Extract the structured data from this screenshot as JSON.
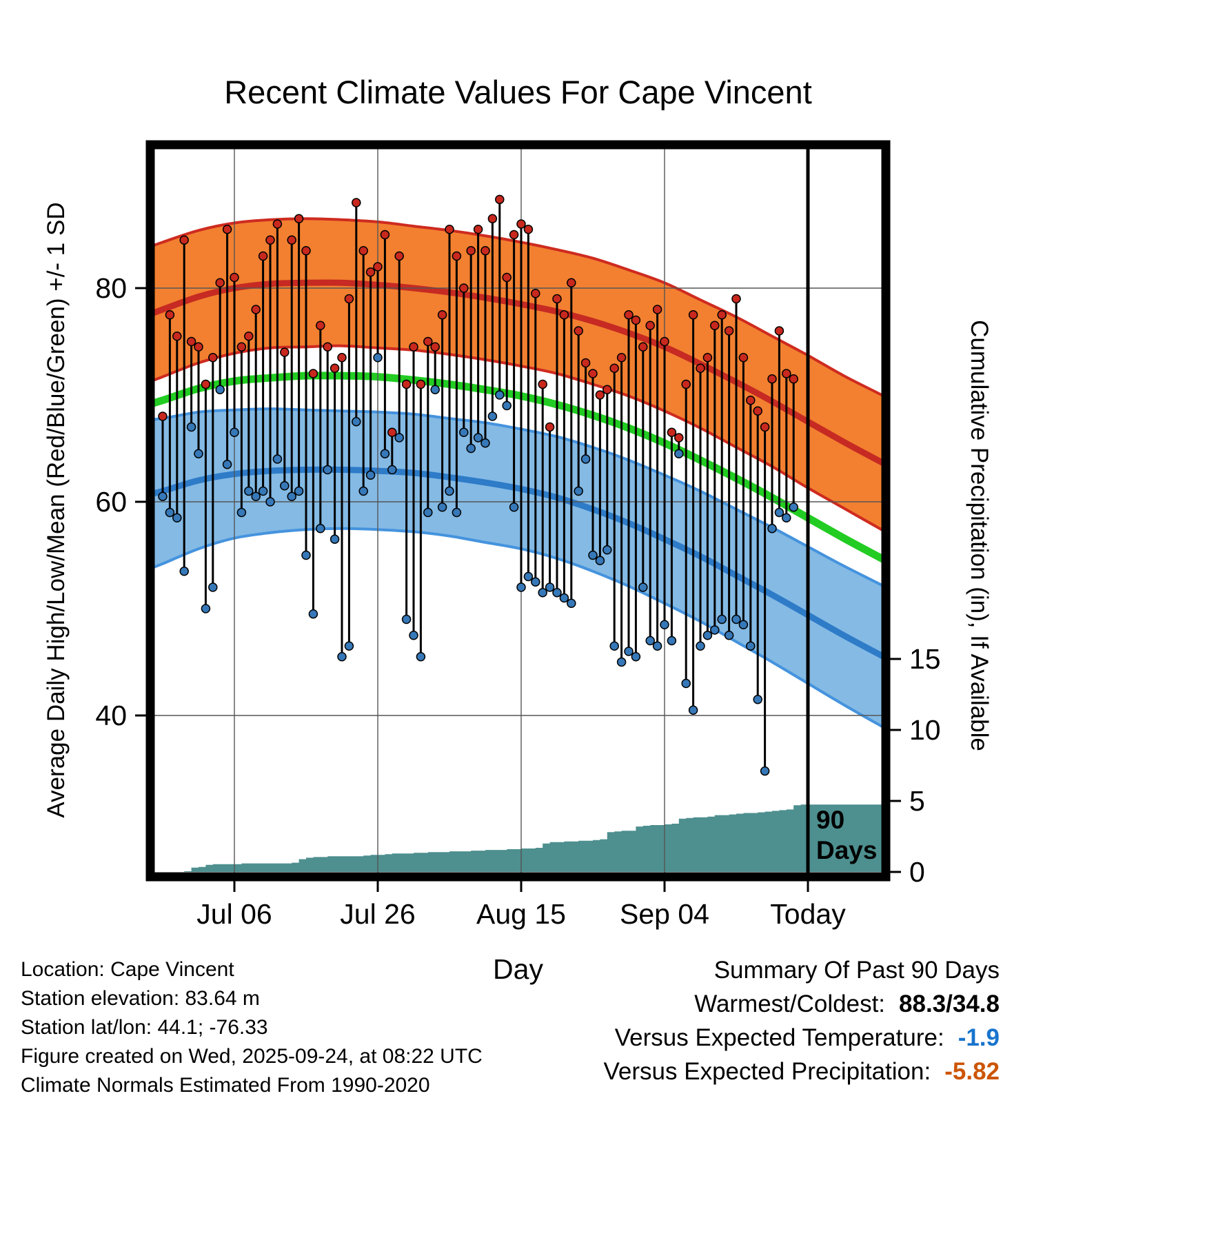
{
  "title": "Recent Climate Values For Cape Vincent",
  "axis_titles": {
    "left": "Average Daily High/Low/Mean (Red/Blue/Green) +/- 1 SD",
    "right": "Cumulative Precipitation (in), If Available",
    "x": "Day"
  },
  "annotations": {
    "period_line1": "90",
    "period_line2": "Days"
  },
  "chart_data": {
    "type": "line",
    "title": "Recent Climate Values For Cape Vincent",
    "x_unit": "day index (0 = about Jun 26, 90 = Today = Sep 24)",
    "today_day": 90,
    "x_ticks": [
      {
        "day": 10,
        "label": "Jul 06"
      },
      {
        "day": 30,
        "label": "Jul 26"
      },
      {
        "day": 50,
        "label": "Aug 15"
      },
      {
        "day": 70,
        "label": "Sep 04"
      },
      {
        "day": 90,
        "label": "Today"
      }
    ],
    "temp_axis": {
      "label": "Average Daily High/Low/Mean (Red/Blue/Green) +/- 1 SD",
      "ticks": [
        40,
        60,
        80
      ],
      "range": [
        24.9,
        93.4
      ]
    },
    "precip_axis": {
      "label": "Cumulative Precipitation (in), If Available",
      "ticks": [
        0,
        5,
        10,
        15
      ],
      "range": [
        0,
        51.2
      ]
    },
    "grid": true,
    "normals": {
      "days": [
        -2,
        0,
        5,
        10,
        15,
        20,
        25,
        30,
        35,
        40,
        45,
        50,
        55,
        60,
        65,
        70,
        75,
        80,
        85,
        90,
        95,
        100,
        102
      ],
      "high_mean": [
        77.5,
        78.0,
        79.2,
        80.0,
        80.4,
        80.5,
        80.5,
        80.3,
        80.0,
        79.6,
        79.1,
        78.5,
        77.8,
        76.9,
        75.8,
        74.5,
        72.9,
        71.2,
        69.4,
        67.5,
        65.6,
        63.8,
        63.1
      ],
      "high_sd": [
        6.3,
        6.3,
        6.2,
        6.1,
        6.0,
        6.0,
        5.9,
        5.9,
        5.8,
        5.8,
        5.8,
        5.8,
        5.8,
        5.9,
        5.9,
        6.0,
        6.0,
        6.1,
        6.1,
        6.2,
        6.2,
        6.3,
        6.3
      ],
      "mean": [
        69.1,
        69.5,
        70.6,
        71.3,
        71.6,
        71.8,
        71.8,
        71.7,
        71.4,
        71.0,
        70.5,
        69.9,
        69.1,
        68.1,
        66.9,
        65.5,
        63.9,
        62.2,
        60.4,
        58.5,
        56.6,
        54.8,
        54.1
      ],
      "low_mean": [
        60.7,
        61.0,
        62.0,
        62.6,
        62.9,
        63.0,
        63.0,
        62.9,
        62.7,
        62.3,
        61.8,
        61.2,
        60.4,
        59.3,
        58.0,
        56.5,
        54.9,
        53.1,
        51.3,
        49.4,
        47.5,
        45.7,
        45.0
      ],
      "low_sd": [
        7.0,
        6.8,
        6.4,
        6.0,
        5.8,
        5.6,
        5.5,
        5.5,
        5.5,
        5.5,
        5.6,
        5.6,
        5.7,
        5.8,
        5.9,
        6.0,
        6.1,
        6.2,
        6.3,
        6.4,
        6.5,
        6.6,
        6.6
      ]
    },
    "daily": {
      "start_day": 0,
      "high": [
        68.0,
        77.5,
        75.5,
        84.5,
        75.0,
        74.5,
        71.0,
        73.5,
        80.5,
        85.5,
        81.0,
        74.5,
        75.5,
        78.0,
        83.0,
        84.5,
        86.0,
        74.0,
        84.5,
        86.5,
        83.5,
        72.0,
        76.5,
        74.5,
        72.5,
        73.5,
        79.0,
        88.0,
        83.5,
        81.5,
        82.0,
        85.0,
        66.5,
        83.0,
        71.0,
        74.5,
        71.0,
        75.0,
        74.5,
        77.5,
        85.5,
        83.0,
        80.0,
        83.5,
        85.5,
        83.5,
        86.5,
        88.3,
        81.0,
        85.0,
        86.0,
        85.5,
        79.5,
        71.0,
        67.0,
        79.0,
        77.5,
        80.5,
        76.0,
        73.0,
        72.0,
        70.0,
        70.5,
        72.5,
        73.5,
        77.5,
        77.0,
        74.5,
        76.5,
        78.0,
        75.0,
        66.5,
        66.0,
        71.0,
        77.5,
        72.5,
        73.5,
        76.5,
        77.5,
        76.0,
        79.0,
        73.5,
        69.5,
        68.5,
        67.0,
        71.5,
        76.0,
        72.0,
        71.5
      ],
      "low": [
        60.5,
        59.0,
        58.5,
        53.5,
        67.0,
        64.5,
        50.0,
        52.0,
        70.5,
        63.5,
        66.5,
        59.0,
        61.0,
        60.5,
        61.0,
        60.0,
        64.0,
        61.5,
        60.5,
        61.0,
        55.0,
        49.5,
        57.5,
        63.0,
        56.5,
        45.5,
        46.5,
        67.5,
        61.0,
        62.5,
        73.5,
        64.5,
        63.0,
        66.0,
        49.0,
        47.5,
        45.5,
        59.0,
        70.5,
        59.5,
        61.0,
        59.0,
        66.5,
        65.0,
        66.0,
        65.5,
        68.0,
        70.0,
        69.0,
        59.5,
        52.0,
        53.0,
        52.5,
        51.5,
        52.0,
        51.5,
        51.0,
        50.5,
        61.0,
        64.0,
        55.0,
        54.5,
        55.5,
        46.5,
        45.0,
        46.0,
        45.5,
        52.0,
        47.0,
        46.5,
        48.5,
        47.0,
        64.5,
        43.0,
        40.5,
        46.5,
        47.5,
        48.0,
        49.0,
        47.5,
        49.0,
        48.5,
        46.5,
        41.5,
        34.8,
        57.5,
        59.0,
        58.5,
        59.5
      ]
    },
    "precip_cumulative": {
      "start_day": 0,
      "values": [
        0,
        0,
        0,
        0.05,
        0.3,
        0.35,
        0.5,
        0.55,
        0.55,
        0.55,
        0.55,
        0.6,
        0.6,
        0.6,
        0.6,
        0.6,
        0.6,
        0.6,
        0.65,
        0.9,
        1.0,
        1.05,
        1.05,
        1.1,
        1.1,
        1.1,
        1.1,
        1.1,
        1.15,
        1.2,
        1.2,
        1.25,
        1.3,
        1.3,
        1.3,
        1.35,
        1.35,
        1.4,
        1.4,
        1.4,
        1.45,
        1.45,
        1.45,
        1.5,
        1.5,
        1.55,
        1.55,
        1.55,
        1.6,
        1.6,
        1.65,
        1.65,
        1.7,
        2.0,
        2.1,
        2.1,
        2.15,
        2.15,
        2.2,
        2.2,
        2.25,
        2.3,
        2.8,
        2.85,
        2.9,
        2.9,
        3.2,
        3.25,
        3.3,
        3.3,
        3.35,
        3.4,
        3.75,
        3.8,
        3.85,
        3.85,
        3.9,
        4.0,
        4.0,
        4.05,
        4.1,
        4.15,
        4.15,
        4.2,
        4.25,
        4.3,
        4.35,
        4.4,
        4.7,
        4.75,
        4.75
      ]
    }
  },
  "footer": {
    "lines": [
      "Location: Cape Vincent",
      "Station elevation: 83.64 m",
      "Station lat/lon: 44.1; -76.33",
      "Figure created on Wed, 2025-09-24, at 08:22 UTC",
      "Climate Normals Estimated From 1990-2020"
    ]
  },
  "summary": {
    "title": "Summary Of Past 90 Days",
    "warmest_label": "Warmest/Coldest:",
    "warmest_value": "88.3/34.8",
    "vs_temp_label": "Versus Expected Temperature:",
    "vs_temp_value": "-1.9",
    "vs_precip_label": "Versus Expected Precipitation:",
    "vs_precip_value": "-5.82"
  },
  "colors": {
    "high_band": "#F28030",
    "high_band_edge": "#CE2B20",
    "high_mean_line": "#C62A22",
    "mean_line": "#22CC22",
    "low_band": "#84BAE4",
    "low_band_edge": "#4593DE",
    "low_mean_line": "#2E7BC8",
    "high_dot": "#C8281E",
    "low_dot": "#3678B8",
    "bar_line": "#000000",
    "precip_fill": "#4E8F8F",
    "grid": "#555555",
    "today_line": "#000000",
    "vs_temp_value": "#1874CD",
    "vs_precip_value": "#CC5500"
  }
}
